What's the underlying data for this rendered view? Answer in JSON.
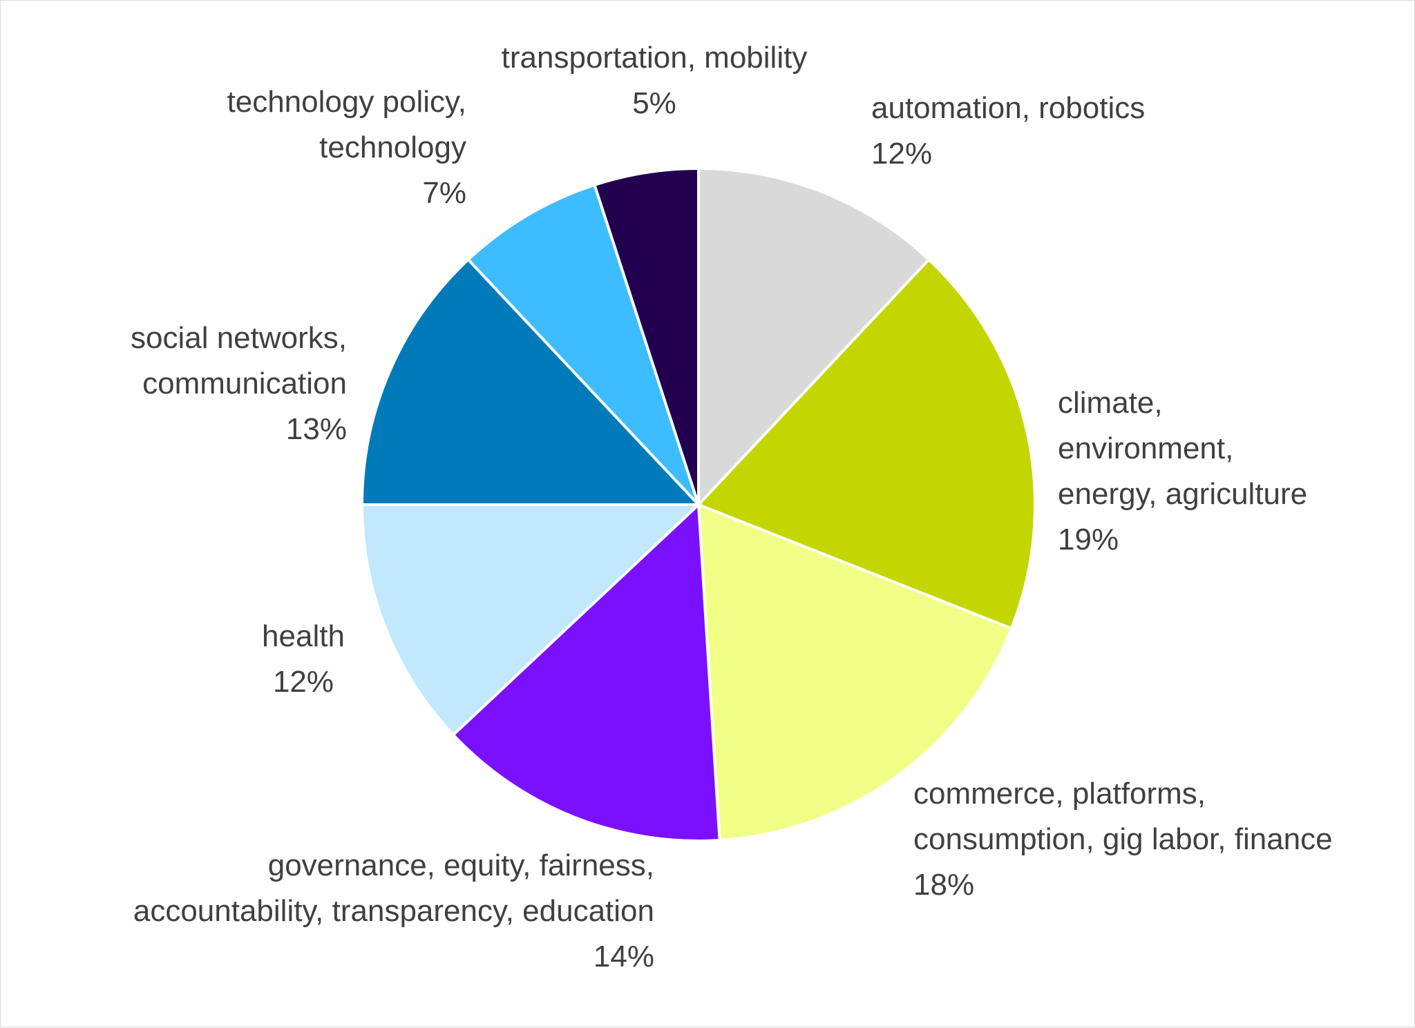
{
  "chart_data": {
    "type": "pie",
    "title": "",
    "start_angle_deg": 0,
    "direction": "clockwise",
    "slices": [
      {
        "name": "automation, robotics",
        "label_lines": [
          "automation, robotics"
        ],
        "percent_label": "12%",
        "value": 12,
        "color": "#d9d9d9",
        "label_side": "right"
      },
      {
        "name": "climate, environment, energy, agriculture",
        "label_lines": [
          "climate,",
          "environment,",
          "energy, agriculture"
        ],
        "percent_label": "19%",
        "value": 19,
        "color": "#c4d600",
        "label_side": "right"
      },
      {
        "name": "commerce, platforms, consumption, gig labor, finance",
        "label_lines": [
          "commerce, platforms,",
          "consumption, gig labor, finance"
        ],
        "percent_label": "18%",
        "value": 18,
        "color": "#f1ff86",
        "label_side": "right"
      },
      {
        "name": "governance, equity, fairness, accountability, transparency, education",
        "label_lines": [
          "governance, equity, fairness,",
          "accountability, transparency, education"
        ],
        "percent_label": "14%",
        "value": 14,
        "color": "#7b0fff",
        "label_side": "left"
      },
      {
        "name": "health",
        "label_lines": [
          "health"
        ],
        "percent_label": "12%",
        "value": 12,
        "color": "#c1e8fc",
        "label_side": "center"
      },
      {
        "name": "social networks, communication",
        "label_lines": [
          "social networks,",
          "communication"
        ],
        "percent_label": "13%",
        "value": 13,
        "color": "#007ab8",
        "label_side": "left"
      },
      {
        "name": "technology policy, technology",
        "label_lines": [
          "technology policy,",
          "technology"
        ],
        "percent_label": "7%",
        "value": 7,
        "color": "#3dbdff",
        "label_side": "left"
      },
      {
        "name": "transportation, mobility",
        "label_lines": [
          "transportation, mobility"
        ],
        "percent_label": "5%",
        "value": 5,
        "color": "#22004f",
        "label_side": "center"
      }
    ]
  }
}
